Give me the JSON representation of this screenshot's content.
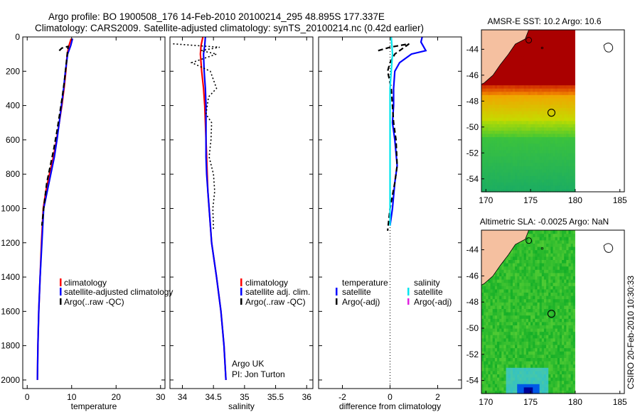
{
  "header": {
    "line1": "Argo profile: BO 1900508_176 14-Feb-2010 20100214_295 48.895S 177.337E",
    "line2": "Climatology: CARS2009. Satellite-adjusted climatology: synTS_20100214.nc (0.42d earlier)"
  },
  "colors": {
    "climatology": "#ff0000",
    "satellite": "#0000ff",
    "argo": "#000000",
    "sal_satellite": "#00e5ee",
    "sal_argo": "#e020e0",
    "land": "#f5c0a0"
  },
  "chart_data": [
    {
      "type": "line",
      "title": "",
      "xlabel": "temperature",
      "ylabel": "",
      "xlim": [
        -1,
        31
      ],
      "ylim": [
        2050,
        0
      ],
      "xticks": [
        0,
        10,
        20,
        30
      ],
      "yticks": [
        0,
        200,
        400,
        600,
        800,
        1000,
        1200,
        1400,
        1600,
        1800,
        2000
      ],
      "series": [
        {
          "name": "climatology",
          "color": "#ff0000",
          "style": "solid",
          "x": [
            9.9,
            9.4,
            9.0,
            8.7,
            8.3,
            7.8,
            7.2,
            6.6,
            5.9,
            5.0,
            4.2,
            3.6,
            3.2,
            2.9,
            2.6,
            2.4,
            2.3
          ],
          "y": [
            10,
            50,
            100,
            200,
            300,
            400,
            500,
            600,
            700,
            800,
            900,
            1000,
            1200,
            1400,
            1600,
            1800,
            2000
          ]
        },
        {
          "name": "satellite-adjusted climatology",
          "color": "#0000ff",
          "style": "solid",
          "x": [
            10.2,
            9.8,
            9.1,
            8.6,
            8.2,
            7.7,
            7.2,
            6.7,
            6.1,
            5.3,
            4.5,
            3.7,
            3.3,
            2.9,
            2.6,
            2.4,
            2.3
          ],
          "y": [
            10,
            50,
            100,
            200,
            300,
            400,
            500,
            600,
            700,
            800,
            900,
            1000,
            1200,
            1400,
            1600,
            1800,
            2000
          ]
        },
        {
          "name": "Argo(..raw -QC)",
          "color": "#000000",
          "style": "dashed",
          "x": [
            7.2,
            7.8,
            9.2,
            8.8,
            8.4,
            7.9,
            7.3,
            6.7,
            6.0,
            5.2,
            4.4,
            3.7,
            3.3
          ],
          "y": [
            80,
            65,
            55,
            150,
            250,
            350,
            450,
            550,
            650,
            750,
            850,
            1000,
            1100
          ]
        }
      ],
      "legend": [
        "climatology",
        "satellite-adjusted climatology",
        "Argo(..raw -QC)"
      ]
    },
    {
      "type": "line",
      "title": "",
      "xlabel": "salinity",
      "ylabel": "",
      "xlim": [
        33.8,
        36.1
      ],
      "ylim": [
        2050,
        0
      ],
      "xticks": [
        34,
        34.5,
        35,
        35.5,
        36
      ],
      "yticks": [
        0,
        200,
        400,
        600,
        800,
        1000,
        1200,
        1400,
        1600,
        1800,
        2000
      ],
      "series": [
        {
          "name": "climatology",
          "color": "#ff0000",
          "style": "solid",
          "x": [
            34.33,
            34.3,
            34.29,
            34.31,
            34.34,
            34.36,
            34.37,
            34.38,
            34.39,
            34.4,
            34.41,
            34.43,
            34.47,
            34.55,
            34.62,
            34.67,
            34.7
          ],
          "y": [
            0,
            50,
            100,
            200,
            300,
            400,
            500,
            600,
            700,
            800,
            900,
            1000,
            1200,
            1400,
            1600,
            1800,
            2000
          ]
        },
        {
          "name": "satellite adj. clim.",
          "color": "#0000ff",
          "style": "solid",
          "x": [
            34.37,
            34.36,
            34.34,
            34.35,
            34.37,
            34.38,
            34.38,
            34.38,
            34.38,
            34.39,
            34.41,
            34.43,
            34.47,
            34.55,
            34.62,
            34.67,
            34.7
          ],
          "y": [
            0,
            50,
            100,
            200,
            300,
            400,
            500,
            600,
            700,
            800,
            900,
            1000,
            1200,
            1400,
            1600,
            1800,
            2000
          ]
        },
        {
          "name": "Argo(..raw -QC)",
          "color": "#000000",
          "style": "dotted",
          "x": [
            33.85,
            34.6,
            34.3,
            34.55,
            34.15,
            34.45,
            34.55,
            34.42,
            34.38,
            34.47,
            34.46,
            34.43,
            34.5,
            34.52,
            34.49,
            34.5
          ],
          "y": [
            40,
            60,
            80,
            100,
            150,
            200,
            300,
            350,
            450,
            500,
            600,
            700,
            800,
            900,
            1000,
            1120
          ]
        }
      ],
      "legend": [
        "climatology",
        "satellite adj. clim.",
        "Argo(..raw -QC)"
      ],
      "annotation": [
        "Argo UK",
        "PI: Jon Turton"
      ]
    },
    {
      "type": "line",
      "title": "",
      "xlabel": "difference from climatology",
      "ylabel": "",
      "xlim": [
        -3.0,
        3.0
      ],
      "ylim": [
        2050,
        0
      ],
      "xticks": [
        -2,
        0,
        2
      ],
      "yticks": [
        0,
        200,
        400,
        600,
        800,
        1000,
        1200,
        1400,
        1600,
        1800,
        2000
      ],
      "series": [
        {
          "name": "temperature satellite",
          "color": "#0000ff",
          "style": "solid",
          "x": [
            1.35,
            1.3,
            1.5,
            0.9,
            0.4,
            0.2,
            0.15,
            0.15,
            0.1,
            0.2,
            0.3,
            0.2,
            0.1,
            0.0
          ],
          "y": [
            0,
            30,
            80,
            100,
            150,
            200,
            300,
            400,
            500,
            600,
            750,
            850,
            1000,
            1100
          ]
        },
        {
          "name": "temperature Argo(-adj)",
          "color": "#000000",
          "style": "dashed",
          "x": [
            -0.5,
            0.0,
            0.8,
            0.2,
            0.0,
            -0.1,
            0.05,
            0.1,
            0.15,
            0.25,
            0.3,
            0.2,
            0.0,
            -0.1
          ],
          "y": [
            80,
            60,
            40,
            100,
            150,
            200,
            300,
            400,
            500,
            600,
            750,
            850,
            1000,
            1130
          ]
        },
        {
          "name": "salinity satellite",
          "color": "#00e5ee",
          "style": "solid",
          "x": [
            0.05,
            0.1,
            0.05,
            0.0,
            0.0,
            0.0,
            0.0,
            0.0,
            0.0,
            0.0
          ],
          "y": [
            0,
            100,
            200,
            300,
            400,
            500,
            600,
            800,
            1000,
            1100
          ]
        },
        {
          "name": "salinity Argo(-adj)",
          "color": "#e020e0",
          "style": "solid",
          "x": [],
          "y": []
        }
      ],
      "legend": [
        "temperature",
        "satellite",
        "Argo(-adj)",
        "salinity",
        "satellite",
        "Argo(-adj)"
      ]
    },
    {
      "type": "heatmap",
      "title": "AMSR-E SST: 10.2 Argo: 10.6",
      "xlim": [
        169.5,
        185.5
      ],
      "ylim": [
        -55,
        -42.5
      ],
      "xticks": [
        170,
        175,
        180,
        185
      ],
      "yticks": [
        -44,
        -46,
        -48,
        -50,
        -52,
        -54
      ],
      "marker": {
        "lon": 177.337,
        "lat": -48.895
      }
    },
    {
      "type": "heatmap",
      "title": "Altimetric SLA: -0.0025 Argo: NaN",
      "xlim": [
        169.5,
        185.5
      ],
      "ylim": [
        -55,
        -42.5
      ],
      "xticks": [
        170,
        175,
        180,
        185
      ],
      "yticks": [
        -44,
        -46,
        -48,
        -50,
        -52,
        -54
      ],
      "marker": {
        "lon": 177.337,
        "lat": -48.895
      }
    }
  ],
  "legends": {
    "temp": [
      "climatology",
      "satellite-adjusted climatology",
      "Argo(..raw -QC)"
    ],
    "sal": [
      "climatology",
      "satellite adj. clim.",
      "Argo(..raw -QC)"
    ],
    "diff_headers": [
      "temperature",
      "salinity"
    ],
    "diff_items": [
      "satellite",
      "Argo(-adj)",
      "satellite",
      "Argo(-adj)"
    ]
  },
  "annotation": {
    "line1": "Argo UK",
    "line2": "PI: Jon Turton"
  },
  "side_label": "CSIRO 20-Feb-2010 10:30:33"
}
